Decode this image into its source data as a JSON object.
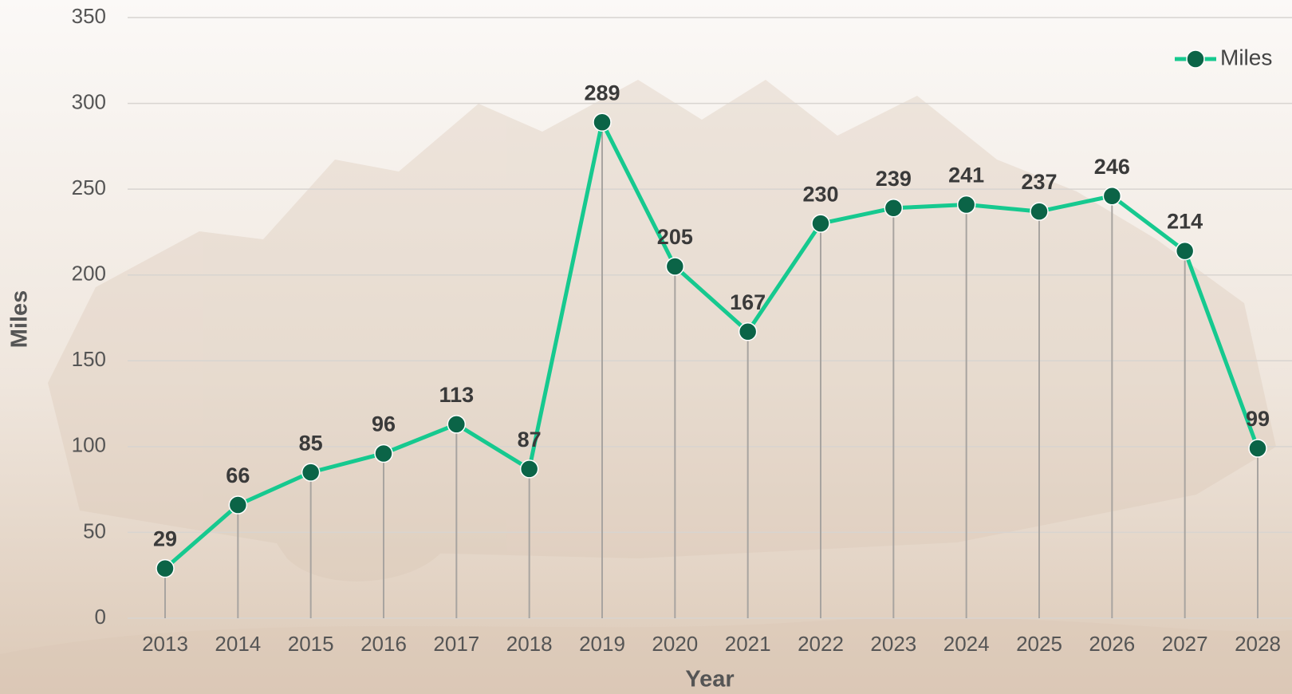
{
  "chart_data": {
    "type": "line",
    "x_label": "Year",
    "y_label": "Miles",
    "categories": [
      "2013",
      "2014",
      "2015",
      "2016",
      "2017",
      "2018",
      "2019",
      "2020",
      "2021",
      "2022",
      "2023",
      "2024",
      "2025",
      "2026",
      "2027",
      "2028"
    ],
    "series": [
      {
        "name": "Miles",
        "color": "#16c98f",
        "marker_color": "#0b6447",
        "values": [
          29,
          66,
          85,
          96,
          113,
          87,
          289,
          205,
          167,
          230,
          239,
          241,
          237,
          246,
          214,
          99
        ]
      }
    ],
    "ylim": [
      0,
      350
    ],
    "yticks": [
      0,
      50,
      100,
      150,
      200,
      250,
      300,
      350
    ],
    "grid": true,
    "legend": "top-right",
    "drop_lines": true
  }
}
